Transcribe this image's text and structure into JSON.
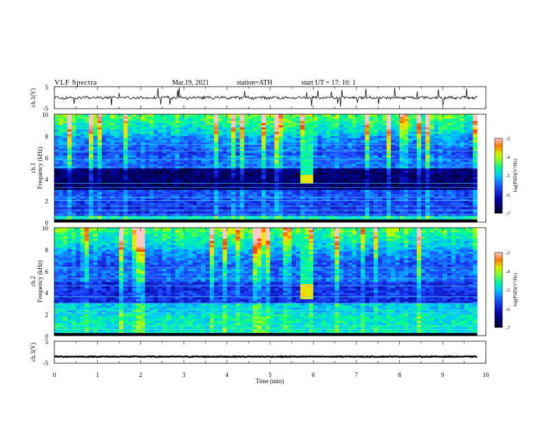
{
  "header": {
    "title": "VLF  Spectra",
    "date": "Mar.19, 2021",
    "station": "station=ATH",
    "start_ut": "start  UT  =   17: 10: 1"
  },
  "colors": {
    "spectrogram_low": "#000030",
    "spectrogram_mid": "#2040ff",
    "spectrogram_high": "#ffff00",
    "trace": "#000000"
  },
  "chart_data": [
    {
      "type": "line",
      "name": "ch1-waveform",
      "ylabel": "ch.1(V)",
      "yticks": [
        "5",
        "-5"
      ],
      "ylim": [
        -5,
        5
      ],
      "xlim": [
        0,
        10
      ],
      "x_extent": [
        0,
        9.8
      ],
      "baseline_v": 0
    },
    {
      "type": "heatmap",
      "name": "ch1-spectrogram",
      "ylabel": "ch.1\nFrequency  (kHz)",
      "yticks": [
        "10",
        "8",
        "6",
        "4",
        "2",
        "0"
      ],
      "ylim": [
        0,
        10
      ],
      "xlim": [
        0,
        10
      ],
      "x_extent": [
        0,
        9.8
      ],
      "colorbar_label": "log(PSD)(V²/Hz)",
      "colorbar_ticks": [
        "-3",
        "-4",
        "-5",
        "-6",
        "-7"
      ],
      "clim": [
        -7,
        -3
      ],
      "bursts": [
        {
          "t_start": 5.75,
          "t_end": 6.0,
          "f_low": 3.6,
          "f_high": 4.3
        }
      ]
    },
    {
      "type": "heatmap",
      "name": "ch2-spectrogram",
      "ylabel": "ch.2\nFrequency  (kHz)",
      "yticks": [
        "10",
        "8",
        "6",
        "4",
        "2",
        "0"
      ],
      "ylim": [
        0,
        10
      ],
      "xlim": [
        0,
        10
      ],
      "x_extent": [
        0,
        9.8
      ],
      "colorbar_label": "log(PSD)(V²/Hz)",
      "colorbar_ticks": [
        "-3",
        "-4",
        "-5",
        "-6",
        "-7"
      ],
      "clim": [
        -7,
        -3
      ],
      "bursts": [
        {
          "t_start": 5.75,
          "t_end": 6.0,
          "f_low": 3.5,
          "f_high": 4.8
        }
      ]
    },
    {
      "type": "line",
      "name": "ch3-waveform",
      "ylabel": "ch.3(V)",
      "yticks": [
        "5",
        "-5"
      ],
      "ylim": [
        -5,
        5
      ],
      "xlim": [
        0,
        10
      ],
      "x_extent": [
        0,
        9.8
      ],
      "baseline_v": -2,
      "xlabel": "Time  (min)",
      "xticks": [
        "0",
        "1",
        "2",
        "3",
        "4",
        "5",
        "6",
        "7",
        "8",
        "9",
        "10"
      ]
    }
  ]
}
